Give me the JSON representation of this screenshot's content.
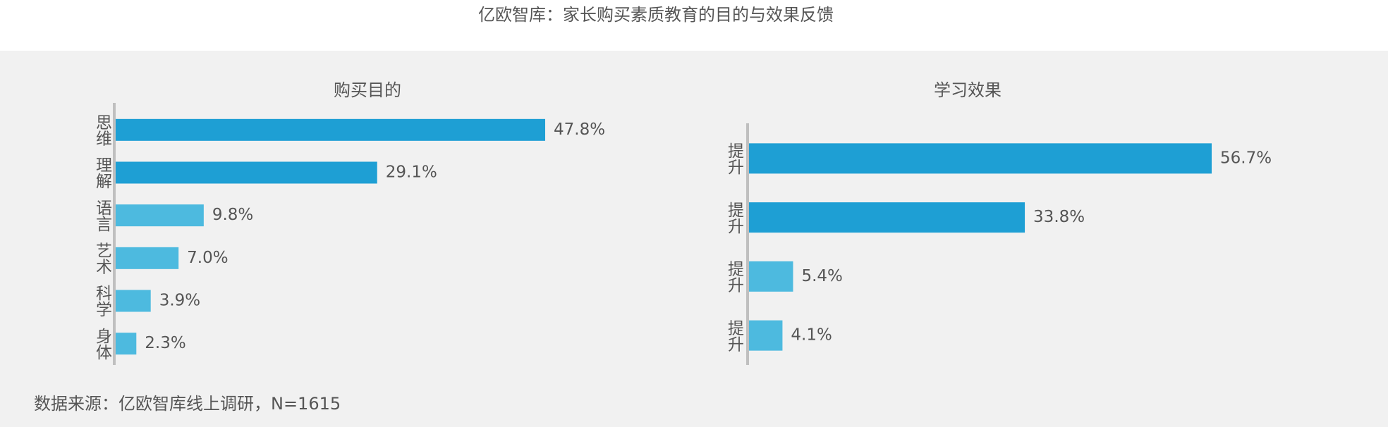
{
  "title": "亿欧智库：家长购买素质教育的目的与效果反馈",
  "source": "数据来源：亿欧智库线上调研，N=1615",
  "chart_data": [
    {
      "type": "bar",
      "orientation": "horizontal",
      "title": "购买目的",
      "categories": [
        "思维",
        "理解",
        "语言",
        "艺术",
        "科学",
        "身体"
      ],
      "values": [
        47.8,
        29.1,
        9.8,
        7.0,
        3.9,
        2.3
      ],
      "value_labels": [
        "47.8%",
        "29.1%",
        "9.8%",
        "7.0%",
        "3.9%",
        "2.3%"
      ],
      "colors": [
        "#1e9fd4",
        "#1e9fd4",
        "#4dbadf",
        "#4dbadf",
        "#4dbadf",
        "#4dbadf"
      ]
    },
    {
      "type": "bar",
      "orientation": "horizontal",
      "title": "学习效果",
      "categories": [
        "提升",
        "提升",
        "提升",
        "提升"
      ],
      "values": [
        56.7,
        33.8,
        5.4,
        4.1
      ],
      "value_labels": [
        "56.7%",
        "33.8%",
        "5.4%",
        "4.1%"
      ],
      "colors": [
        "#1e9fd4",
        "#1e9fd4",
        "#4dbadf",
        "#4dbadf"
      ]
    }
  ]
}
